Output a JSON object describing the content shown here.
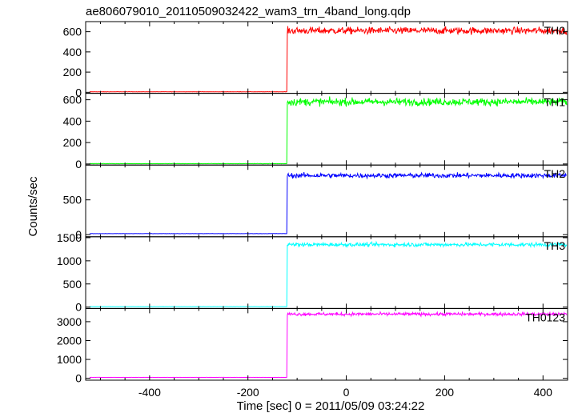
{
  "chart_data": {
    "type": "line",
    "title": "ae806079010_20110509032422_wam3_trn_4band_long.qdp",
    "xlabel": "Time [sec] 0 = 2011/05/09 03:24:22",
    "ylabel": "Counts/sec",
    "xlim": [
      -530,
      450
    ],
    "xticks": [
      -400,
      -200,
      0,
      200,
      400
    ],
    "grid": false,
    "step_time": -120,
    "panels": [
      {
        "name": "TH0",
        "color": "#ff0000",
        "ylim": [
          -10,
          700
        ],
        "yticks": [
          0,
          200,
          400,
          600
        ],
        "baseline": 5,
        "level": 610,
        "noise": 25
      },
      {
        "name": "TH1",
        "color": "#00ff00",
        "ylim": [
          -10,
          660
        ],
        "yticks": [
          0,
          200,
          400,
          600
        ],
        "baseline": 3,
        "level": 580,
        "noise": 25
      },
      {
        "name": "TH2",
        "color": "#0000ff",
        "ylim": [
          -30,
          1000
        ],
        "yticks": [
          0,
          500
        ],
        "baseline": 15,
        "level": 850,
        "noise": 25
      },
      {
        "name": "TH3",
        "color": "#00ffff",
        "ylim": [
          -30,
          1520
        ],
        "yticks": [
          0,
          500,
          1000,
          1500
        ],
        "baseline": 10,
        "level": 1350,
        "noise": 30
      },
      {
        "name": "TH0123",
        "color": "#ff00ff",
        "ylim": [
          -100,
          3700
        ],
        "yticks": [
          0,
          1000,
          2000,
          3000
        ],
        "baseline": 50,
        "level": 3400,
        "noise": 60
      }
    ]
  }
}
